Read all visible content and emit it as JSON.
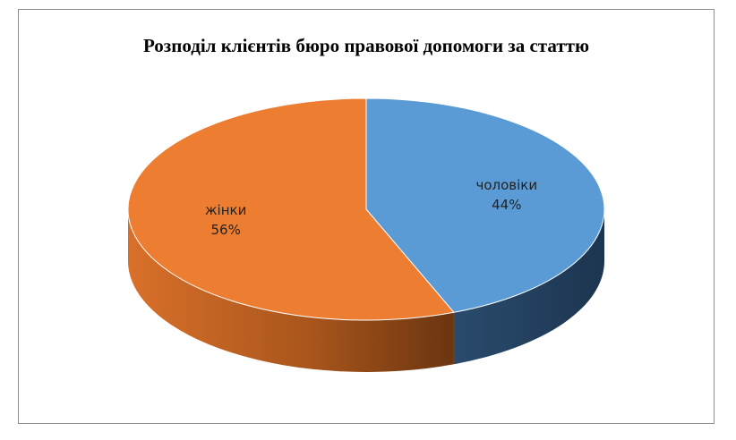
{
  "chart_data": {
    "type": "pie",
    "style": "3d",
    "title": "Розподіл клієнтів бюро правової допомоги за статтю",
    "slices": [
      {
        "label": "чоловіки",
        "value": 44,
        "display": "44%",
        "color": "#5b9bd5",
        "side_color": "#223f5c"
      },
      {
        "label": "жінки",
        "value": 56,
        "display": "56%",
        "color": "#ed7d31",
        "side_color": "#a9561c"
      }
    ],
    "legend": "none"
  }
}
